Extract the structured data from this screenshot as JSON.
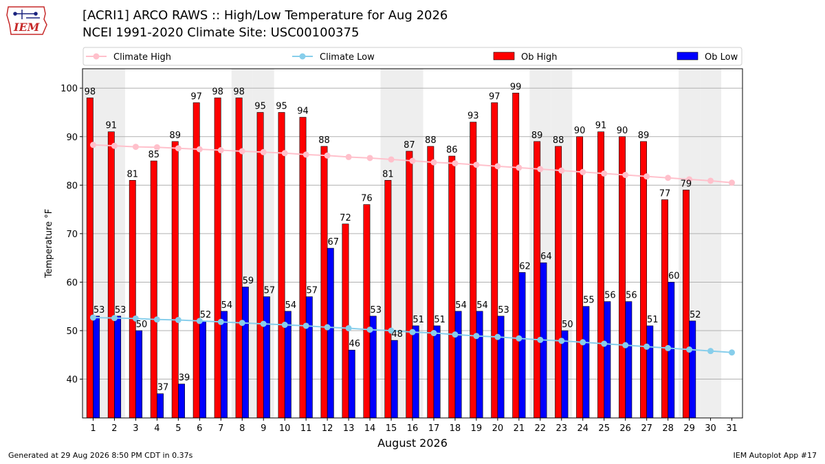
{
  "header": {
    "title": "[ACRI1] ARCO RAWS :: High/Low Temperature for Aug 2026",
    "subtitle": "NCEI 1991-2020 Climate Site: USC00100375",
    "logo_text": "IEM"
  },
  "footer": {
    "generated": "Generated at 29 Aug 2026 8:50 PM CDT in 0.37s",
    "app": "IEM Autoplot App #17"
  },
  "colors": {
    "ob_high": "#ff0000",
    "ob_low": "#0000ff",
    "climate_high": "#ffc0cb",
    "climate_low": "#87ceeb",
    "weekend_band": "#eeeeee"
  },
  "chart_data": {
    "type": "bar",
    "xlabel": "August 2026",
    "ylabel": "Temperature °F",
    "ylim": [
      32,
      104
    ],
    "yticks": [
      40,
      50,
      60,
      70,
      80,
      90,
      100
    ],
    "categories": [
      "1",
      "2",
      "3",
      "4",
      "5",
      "6",
      "7",
      "8",
      "9",
      "10",
      "11",
      "12",
      "13",
      "14",
      "15",
      "16",
      "17",
      "18",
      "19",
      "20",
      "21",
      "22",
      "23",
      "24",
      "25",
      "26",
      "27",
      "28",
      "29",
      "30",
      "31"
    ],
    "weekend_days": [
      1,
      2,
      8,
      9,
      15,
      16,
      22,
      23,
      29,
      30
    ],
    "grid": true,
    "legend_position": "top",
    "series": [
      {
        "name": "Ob High",
        "kind": "bar",
        "values": [
          98,
          91,
          81,
          85,
          89,
          97,
          98,
          98,
          95,
          95,
          94,
          88,
          72,
          76,
          81,
          87,
          88,
          86,
          93,
          97,
          99,
          89,
          88,
          90,
          91,
          90,
          89,
          77,
          79,
          null,
          null
        ]
      },
      {
        "name": "Ob Low",
        "kind": "bar",
        "values": [
          53,
          53,
          50,
          37,
          39,
          52,
          54,
          59,
          57,
          54,
          57,
          67,
          46,
          53,
          48,
          51,
          51,
          54,
          54,
          53,
          62,
          64,
          50,
          55,
          56,
          56,
          51,
          60,
          52,
          null,
          null
        ]
      },
      {
        "name": "Climate High",
        "kind": "line",
        "values": [
          88.3,
          88.1,
          87.9,
          87.8,
          87.6,
          87.4,
          87.2,
          87.0,
          86.8,
          86.6,
          86.3,
          86.1,
          85.8,
          85.6,
          85.3,
          85.0,
          84.7,
          84.5,
          84.2,
          83.9,
          83.6,
          83.3,
          83.0,
          82.7,
          82.4,
          82.1,
          81.8,
          81.5,
          81.2,
          80.9,
          80.5
        ]
      },
      {
        "name": "Climate Low",
        "kind": "line",
        "values": [
          52.7,
          52.6,
          52.5,
          52.3,
          52.2,
          52.0,
          51.8,
          51.6,
          51.4,
          51.2,
          51.0,
          50.7,
          50.5,
          50.2,
          50.0,
          49.7,
          49.5,
          49.2,
          48.9,
          48.7,
          48.4,
          48.1,
          47.9,
          47.6,
          47.3,
          47.0,
          46.7,
          46.4,
          46.1,
          45.8,
          45.5
        ]
      }
    ]
  }
}
